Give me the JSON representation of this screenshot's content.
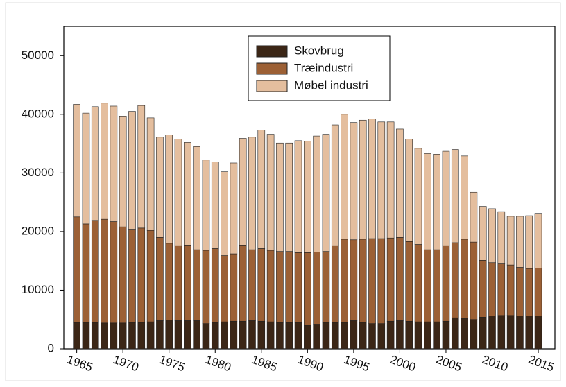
{
  "chart_data": {
    "type": "stacked_bar",
    "x": [
      1965,
      1966,
      1967,
      1968,
      1969,
      1970,
      1971,
      1972,
      1973,
      1974,
      1975,
      1976,
      1977,
      1978,
      1979,
      1980,
      1981,
      1982,
      1983,
      1984,
      1985,
      1986,
      1987,
      1988,
      1989,
      1990,
      1991,
      1992,
      1993,
      1994,
      1995,
      1996,
      1997,
      1998,
      1999,
      2000,
      2001,
      2002,
      2003,
      2004,
      2005,
      2006,
      2007,
      2008,
      2009,
      2010,
      2011,
      2012,
      2013,
      2014,
      2015
    ],
    "series": [
      {
        "name": "Skovbrug",
        "color": "#3b2616",
        "values": [
          4500,
          4500,
          4500,
          4400,
          4400,
          4400,
          4500,
          4500,
          4600,
          4800,
          4900,
          4800,
          4800,
          4800,
          4300,
          4500,
          4600,
          4700,
          4700,
          4800,
          4700,
          4600,
          4500,
          4500,
          4500,
          4000,
          4200,
          4500,
          4500,
          4500,
          4800,
          4500,
          4300,
          4300,
          4700,
          4800,
          4700,
          4600,
          4600,
          4600,
          4700,
          5300,
          5200,
          5000,
          5400,
          5600,
          5700,
          5700,
          5600,
          5600,
          5600
        ]
      },
      {
        "name": "Træindustri",
        "color": "#9c6035",
        "values": [
          18000,
          16800,
          17400,
          17700,
          17300,
          16400,
          15900,
          16100,
          15600,
          14200,
          13100,
          12800,
          12900,
          12100,
          12500,
          12600,
          11300,
          11500,
          13000,
          12100,
          12400,
          12200,
          12100,
          12100,
          11900,
          12400,
          12300,
          12100,
          13100,
          14200,
          13800,
          14200,
          14500,
          14500,
          14200,
          14200,
          13600,
          13200,
          12300,
          12300,
          12900,
          12800,
          13500,
          13200,
          9700,
          9100,
          8900,
          8600,
          8300,
          8100,
          8200
        ]
      },
      {
        "name": "Møbel industri",
        "color": "#e4be9e",
        "values": [
          19200,
          18900,
          19400,
          19800,
          19700,
          18900,
          20100,
          20900,
          19200,
          17100,
          18500,
          18200,
          17500,
          17600,
          15400,
          14800,
          14300,
          15500,
          18200,
          19200,
          20200,
          19800,
          18500,
          18500,
          19100,
          19000,
          19800,
          20000,
          20600,
          21300,
          20000,
          20300,
          20400,
          19900,
          19800,
          18500,
          17500,
          16400,
          16400,
          16300,
          16100,
          15900,
          14200,
          8500,
          9200,
          9200,
          8800,
          8300,
          8700,
          9000,
          9300
        ]
      }
    ],
    "xlim": [
      1963.6,
      2016.8
    ],
    "xticks": [
      1965,
      1970,
      1975,
      1980,
      1985,
      1990,
      1995,
      2000,
      2005,
      2010,
      2015
    ],
    "ylim": [
      0,
      55000
    ],
    "yticks": [
      0,
      10000,
      20000,
      30000,
      40000,
      50000
    ],
    "legend": "upper center"
  }
}
